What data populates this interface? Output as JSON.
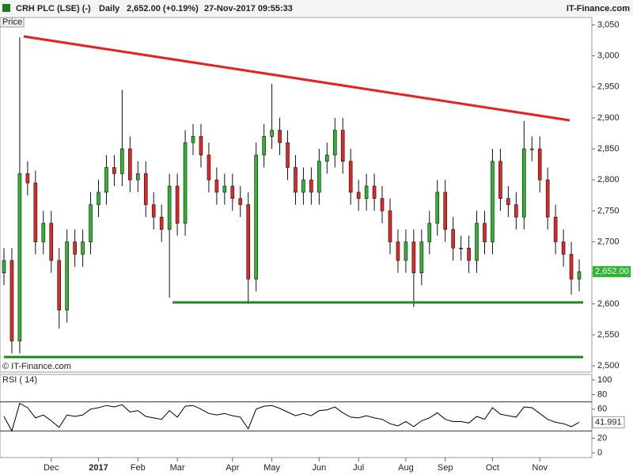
{
  "chart_data": [
    {
      "type": "candlestick",
      "title": "CRH PLC (LSE) (-)",
      "period": "Daily",
      "quote": "2,652.00 (+0.19%)",
      "timestamp": "27-Nov-2017 09:55:33",
      "source": "IT-Finance.com",
      "ylabel": "Price",
      "copyright": "© IT-Finance.com",
      "categories": [
        null,
        null,
        null,
        null,
        null,
        null,
        "Dec",
        null,
        null,
        null,
        null,
        null,
        "2017",
        null,
        null,
        null,
        null,
        "Feb",
        null,
        null,
        null,
        null,
        "Mar",
        null,
        null,
        null,
        null,
        null,
        null,
        "Apr",
        null,
        null,
        null,
        null,
        "May",
        null,
        null,
        null,
        null,
        null,
        "Jun",
        null,
        null,
        null,
        null,
        "Jul",
        null,
        null,
        null,
        null,
        null,
        "Aug",
        null,
        null,
        null,
        null,
        "Sep",
        null,
        null,
        null,
        null,
        null,
        "Oct",
        null,
        null,
        null,
        null,
        null,
        "Nov",
        null,
        null,
        null,
        null,
        null
      ],
      "open": [
        2650,
        2670,
        2540,
        2810,
        2795,
        2700,
        2730,
        2670,
        2590,
        2700,
        2680,
        2700,
        2760,
        2780,
        2820,
        2810,
        2850,
        2800,
        2810,
        2760,
        2740,
        2720,
        2790,
        2730,
        2860,
        2870,
        2840,
        2800,
        2780,
        2790,
        2770,
        2760,
        2640,
        2840,
        2870,
        2880,
        2860,
        2820,
        2780,
        2800,
        2780,
        2830,
        2840,
        2880,
        2830,
        2780,
        2770,
        2790,
        2770,
        2750,
        2700,
        2670,
        2700,
        2650,
        2700,
        2730,
        2780,
        2720,
        2690,
        2690,
        2670,
        2730,
        2700,
        2830,
        2770,
        2760,
        2740,
        2850,
        2850,
        2800,
        2740,
        2700,
        2680,
        2640
      ],
      "high": [
        2690,
        2690,
        3030,
        2830,
        2815,
        2750,
        2750,
        2690,
        2720,
        2720,
        2720,
        2780,
        2800,
        2840,
        2840,
        2945,
        2870,
        2830,
        2830,
        2780,
        2760,
        2810,
        2810,
        2880,
        2890,
        2890,
        2860,
        2820,
        2810,
        2810,
        2790,
        2780,
        2860,
        2890,
        2955,
        2900,
        2880,
        2840,
        2820,
        2820,
        2850,
        2860,
        2900,
        2900,
        2850,
        2800,
        2810,
        2810,
        2790,
        2770,
        2720,
        2720,
        2720,
        2720,
        2750,
        2800,
        2800,
        2740,
        2710,
        2710,
        2750,
        2750,
        2850,
        2850,
        2790,
        2780,
        2895,
        2870,
        2870,
        2820,
        2760,
        2720,
        2700,
        2672
      ],
      "low": [
        2630,
        2520,
        2520,
        2775,
        2680,
        2680,
        2650,
        2560,
        2570,
        2660,
        2660,
        2680,
        2740,
        2760,
        2790,
        2790,
        2780,
        2780,
        2740,
        2720,
        2700,
        2610,
        2710,
        2710,
        2840,
        2820,
        2780,
        2760,
        2760,
        2750,
        2740,
        2600,
        2620,
        2820,
        2850,
        2840,
        2800,
        2760,
        2760,
        2760,
        2760,
        2810,
        2820,
        2810,
        2760,
        2750,
        2750,
        2750,
        2730,
        2680,
        2650,
        2650,
        2595,
        2630,
        2680,
        2710,
        2700,
        2670,
        2670,
        2650,
        2650,
        2680,
        2680,
        2750,
        2740,
        2720,
        2720,
        2830,
        2780,
        2720,
        2680,
        2660,
        2615,
        2620
      ],
      "close": [
        2670,
        2540,
        2810,
        2795,
        2700,
        2730,
        2670,
        2590,
        2700,
        2680,
        2700,
        2760,
        2780,
        2820,
        2810,
        2850,
        2800,
        2810,
        2760,
        2740,
        2720,
        2790,
        2730,
        2860,
        2870,
        2840,
        2800,
        2780,
        2790,
        2770,
        2760,
        2640,
        2840,
        2870,
        2880,
        2860,
        2820,
        2780,
        2800,
        2780,
        2830,
        2840,
        2880,
        2830,
        2780,
        2770,
        2790,
        2770,
        2750,
        2700,
        2670,
        2700,
        2650,
        2700,
        2730,
        2780,
        2720,
        2690,
        2690,
        2670,
        2730,
        2700,
        2830,
        2770,
        2760,
        2740,
        2850,
        2850,
        2800,
        2740,
        2700,
        2680,
        2640,
        2652
      ],
      "last_label": "2,652.00",
      "up_color": "#2fb52f",
      "down_color": "#e02828",
      "ylim": [
        2490,
        3062
      ],
      "yticks": [
        {
          "value": 2500,
          "label": "2,500"
        },
        {
          "value": 2550,
          "label": "2,550"
        },
        {
          "value": 2600,
          "label": "2,600"
        },
        {
          "value": 2650,
          "label": "2,650"
        },
        {
          "value": 2700,
          "label": "2,700"
        },
        {
          "value": 2750,
          "label": "2,750"
        },
        {
          "value": 2800,
          "label": "2,800"
        },
        {
          "value": 2850,
          "label": "2,850"
        },
        {
          "value": 2900,
          "label": "2,900"
        },
        {
          "value": 2950,
          "label": "2,950"
        },
        {
          "value": 3000,
          "label": "3,000"
        },
        {
          "value": 3050,
          "label": "3,050"
        }
      ]
    },
    {
      "type": "line",
      "title": "RSI ( 14)",
      "color": "#000000",
      "values": [
        50,
        30,
        68,
        62,
        48,
        52,
        44,
        35,
        52,
        50,
        52,
        60,
        62,
        65,
        63,
        66,
        56,
        58,
        50,
        48,
        46,
        58,
        49,
        64,
        65,
        60,
        54,
        52,
        54,
        51,
        49,
        33,
        60,
        64,
        65,
        61,
        56,
        51,
        54,
        51,
        58,
        59,
        63,
        55,
        49,
        48,
        51,
        48,
        46,
        40,
        37,
        43,
        36,
        44,
        48,
        55,
        46,
        43,
        43,
        41,
        50,
        46,
        62,
        53,
        51,
        49,
        63,
        62,
        54,
        46,
        42,
        40,
        36,
        41.991
      ],
      "levels": [
        30,
        70
      ],
      "ylim": [
        -6.5,
        107.6
      ],
      "yticks": [
        0,
        20,
        60,
        80,
        100
      ]
    }
  ]
}
